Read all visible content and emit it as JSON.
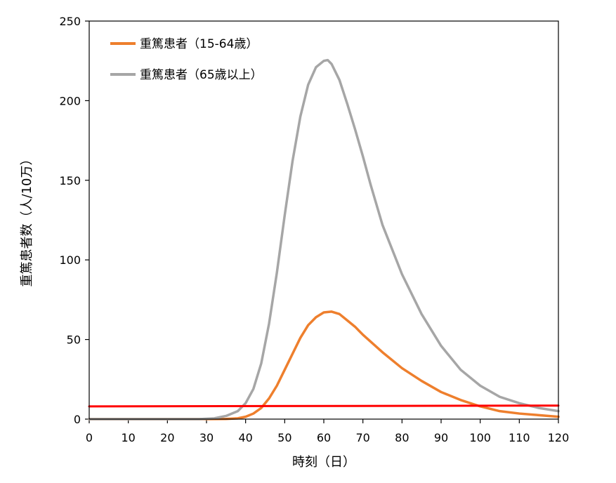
{
  "chart_data": {
    "type": "line",
    "xlabel": "時刻（日）",
    "ylabel": "重篤患者数（人/10万）",
    "xlim": [
      0,
      120
    ],
    "ylim": [
      0,
      250
    ],
    "xticks": [
      0,
      10,
      20,
      30,
      40,
      50,
      60,
      70,
      80,
      90,
      100,
      110,
      120
    ],
    "yticks": [
      0,
      50,
      100,
      150,
      200,
      250
    ],
    "grid": false,
    "legend_position": "top-left",
    "series": [
      {
        "name": "重篤患者（15-64歳）",
        "color": "#ee7f2d",
        "x": [
          0,
          30,
          35,
          38,
          40,
          42,
          44,
          46,
          48,
          50,
          52,
          54,
          56,
          58,
          60,
          62,
          64,
          66,
          68,
          70,
          75,
          80,
          85,
          90,
          95,
          100,
          105,
          110,
          115,
          120
        ],
        "y": [
          0,
          0,
          0.1,
          0.5,
          1.5,
          3.5,
          7,
          13,
          21,
          31,
          41,
          51,
          59,
          64,
          67,
          67.5,
          66,
          62,
          58,
          53,
          42,
          32,
          24,
          17,
          12,
          8,
          5,
          3.5,
          2.5,
          1.5
        ]
      },
      {
        "name": "重篤患者（65歳以上）",
        "color": "#a6a6a6",
        "x": [
          0,
          28,
          32,
          35,
          38,
          40,
          42,
          44,
          46,
          48,
          50,
          52,
          54,
          56,
          58,
          60,
          61,
          62,
          64,
          66,
          68,
          70,
          72,
          75,
          80,
          85,
          90,
          95,
          100,
          105,
          110,
          115,
          120
        ],
        "y": [
          0,
          0,
          0.5,
          2,
          5,
          10,
          19,
          35,
          60,
          92,
          128,
          162,
          190,
          210,
          221,
          225,
          225.5,
          223,
          213,
          198,
          182,
          165,
          147,
          122,
          91,
          66,
          46,
          31,
          21,
          14,
          10,
          7,
          5
        ]
      },
      {
        "color": "#ff0000",
        "x": [
          0,
          120
        ],
        "y": [
          8,
          8.5
        ]
      }
    ]
  }
}
